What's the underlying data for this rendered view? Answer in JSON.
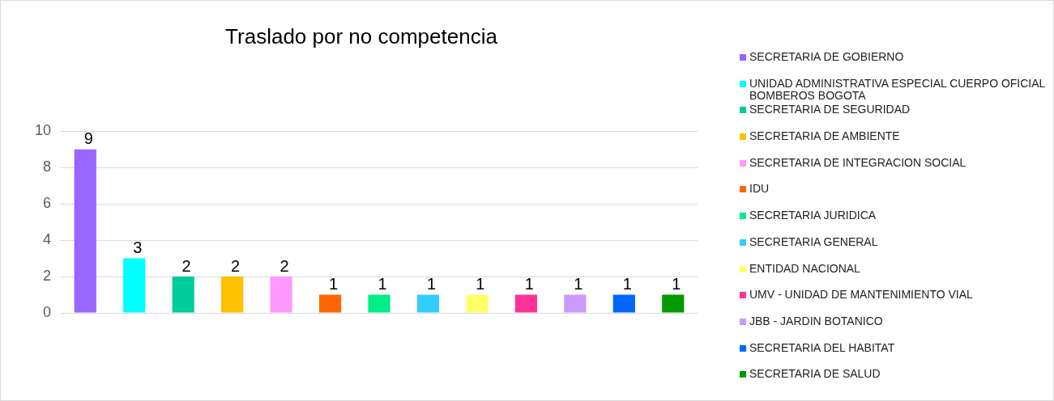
{
  "chart_data": {
    "type": "bar",
    "title": "Traslado por no competencia",
    "categories": [
      null,
      null,
      null,
      null,
      null,
      null,
      null,
      null,
      null,
      null,
      null,
      null,
      null
    ],
    "series": [
      {
        "name": "SECRETARIA DE GOBIERNO",
        "color": "#9966ff",
        "values": [
          9,
          null,
          null,
          null,
          null,
          null,
          null,
          null,
          null,
          null,
          null,
          null,
          null
        ]
      },
      {
        "name": "UNIDAD ADMINISTRATIVA ESPECIAL CUERPO OFICIAL BOMBEROS BOGOTA",
        "color": "#00ffff",
        "values": [
          null,
          3,
          null,
          null,
          null,
          null,
          null,
          null,
          null,
          null,
          null,
          null,
          null
        ]
      },
      {
        "name": "SECRETARIA DE SEGURIDAD",
        "color": "#00cc99",
        "values": [
          null,
          null,
          2,
          null,
          null,
          null,
          null,
          null,
          null,
          null,
          null,
          null,
          null
        ]
      },
      {
        "name": "SECRETARIA DE AMBIENTE",
        "color": "#ffc000",
        "values": [
          null,
          null,
          null,
          2,
          null,
          null,
          null,
          null,
          null,
          null,
          null,
          null,
          null
        ]
      },
      {
        "name": "SECRETARIA DE INTEGRACION SOCIAL",
        "color": "#ff99ff",
        "values": [
          null,
          null,
          null,
          null,
          2,
          null,
          null,
          null,
          null,
          null,
          null,
          null,
          null
        ]
      },
      {
        "name": "IDU",
        "color": "#ff6600",
        "values": [
          null,
          null,
          null,
          null,
          null,
          1,
          null,
          null,
          null,
          null,
          null,
          null,
          null
        ]
      },
      {
        "name": "SECRETARIA JURIDICA",
        "color": "#00ee88",
        "values": [
          null,
          null,
          null,
          null,
          null,
          null,
          1,
          null,
          null,
          null,
          null,
          null,
          null
        ]
      },
      {
        "name": "SECRETARIA GENERAL",
        "color": "#33ccff",
        "values": [
          null,
          null,
          null,
          null,
          null,
          null,
          null,
          1,
          null,
          null,
          null,
          null,
          null
        ]
      },
      {
        "name": "ENTIDAD NACIONAL",
        "color": "#ffff66",
        "values": [
          null,
          null,
          null,
          null,
          null,
          null,
          null,
          null,
          1,
          null,
          null,
          null,
          null
        ]
      },
      {
        "name": "UMV - UNIDAD DE MANTENIMIENTO VIAL",
        "color": "#ff3399",
        "values": [
          null,
          null,
          null,
          null,
          null,
          null,
          null,
          null,
          null,
          1,
          null,
          null,
          null
        ]
      },
      {
        "name": "JBB - JARDIN BOTANICO",
        "color": "#cc99ff",
        "values": [
          null,
          null,
          null,
          null,
          null,
          null,
          null,
          null,
          null,
          null,
          1,
          null,
          null
        ]
      },
      {
        "name": "SECRETARIA DEL HABITAT",
        "color": "#0066ff",
        "values": [
          null,
          null,
          null,
          null,
          null,
          null,
          null,
          null,
          null,
          null,
          null,
          1,
          null
        ]
      },
      {
        "name": "SECRETARIA DE SALUD",
        "color": "#009900",
        "values": [
          null,
          null,
          null,
          null,
          null,
          null,
          null,
          null,
          null,
          null,
          null,
          null,
          1
        ]
      }
    ],
    "ylim": [
      0,
      10
    ],
    "yticks": [
      0,
      2,
      4,
      6,
      8,
      10
    ],
    "grid": "y",
    "legend": "right",
    "data_labels": true
  }
}
